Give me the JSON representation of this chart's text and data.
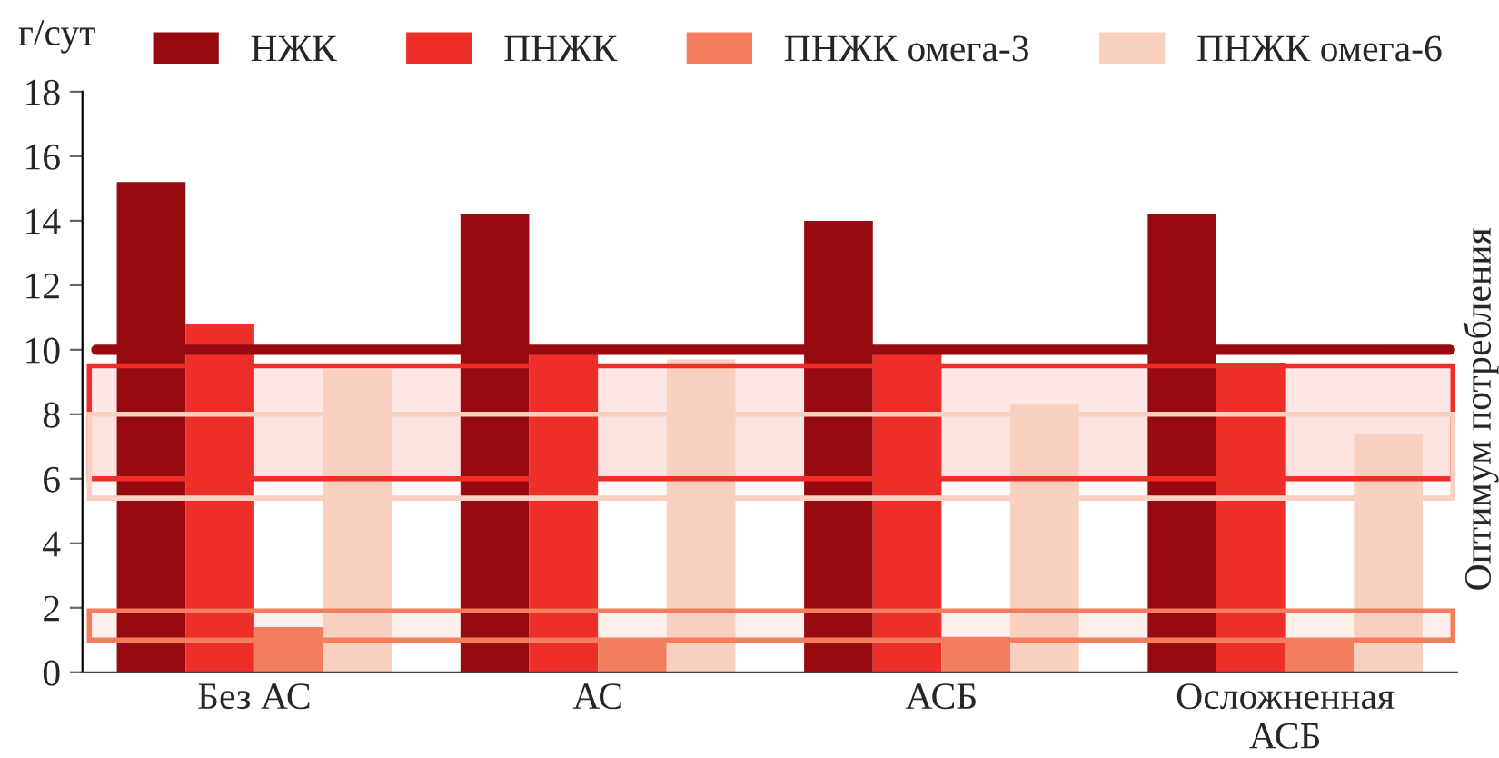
{
  "chart_data": {
    "type": "bar",
    "ylabel": "г/сут",
    "categories": [
      "Без АС",
      "АС",
      "АСБ",
      "Осложненная\nАСБ"
    ],
    "series": [
      {
        "name": "НЖК",
        "color": "#960a10",
        "values": [
          15.2,
          14.2,
          14.0,
          14.2
        ]
      },
      {
        "name": "ПНЖК",
        "color": "#ee2e28",
        "values": [
          10.8,
          9.9,
          9.9,
          9.6
        ]
      },
      {
        "name": "ПНЖК омега-3",
        "color": "#f47d5e",
        "values": [
          1.4,
          1.0,
          1.1,
          1.0
        ]
      },
      {
        "name": "ПНЖК омега-6",
        "color": "#f9cfbf",
        "values": [
          9.4,
          9.7,
          8.3,
          7.4
        ]
      }
    ],
    "ylim": [
      0,
      18
    ],
    "yticks": [
      0,
      2,
      4,
      6,
      8,
      10,
      12,
      14,
      16,
      18
    ],
    "ref_lines": [
      {
        "axis": "y",
        "value": 10,
        "color": "#960a10"
      }
    ],
    "bands": [
      {
        "axis": "y",
        "from": 6,
        "to": 9.5,
        "color": "#ee2e28"
      },
      {
        "axis": "y",
        "from": 5.4,
        "to": 8,
        "color": "#f9cfbf"
      },
      {
        "axis": "y",
        "from": 1,
        "to": 1.9,
        "color": "#f47d5e"
      }
    ],
    "annotations": [
      "Оптимум потребления"
    ],
    "legend": "top",
    "grid": false
  }
}
